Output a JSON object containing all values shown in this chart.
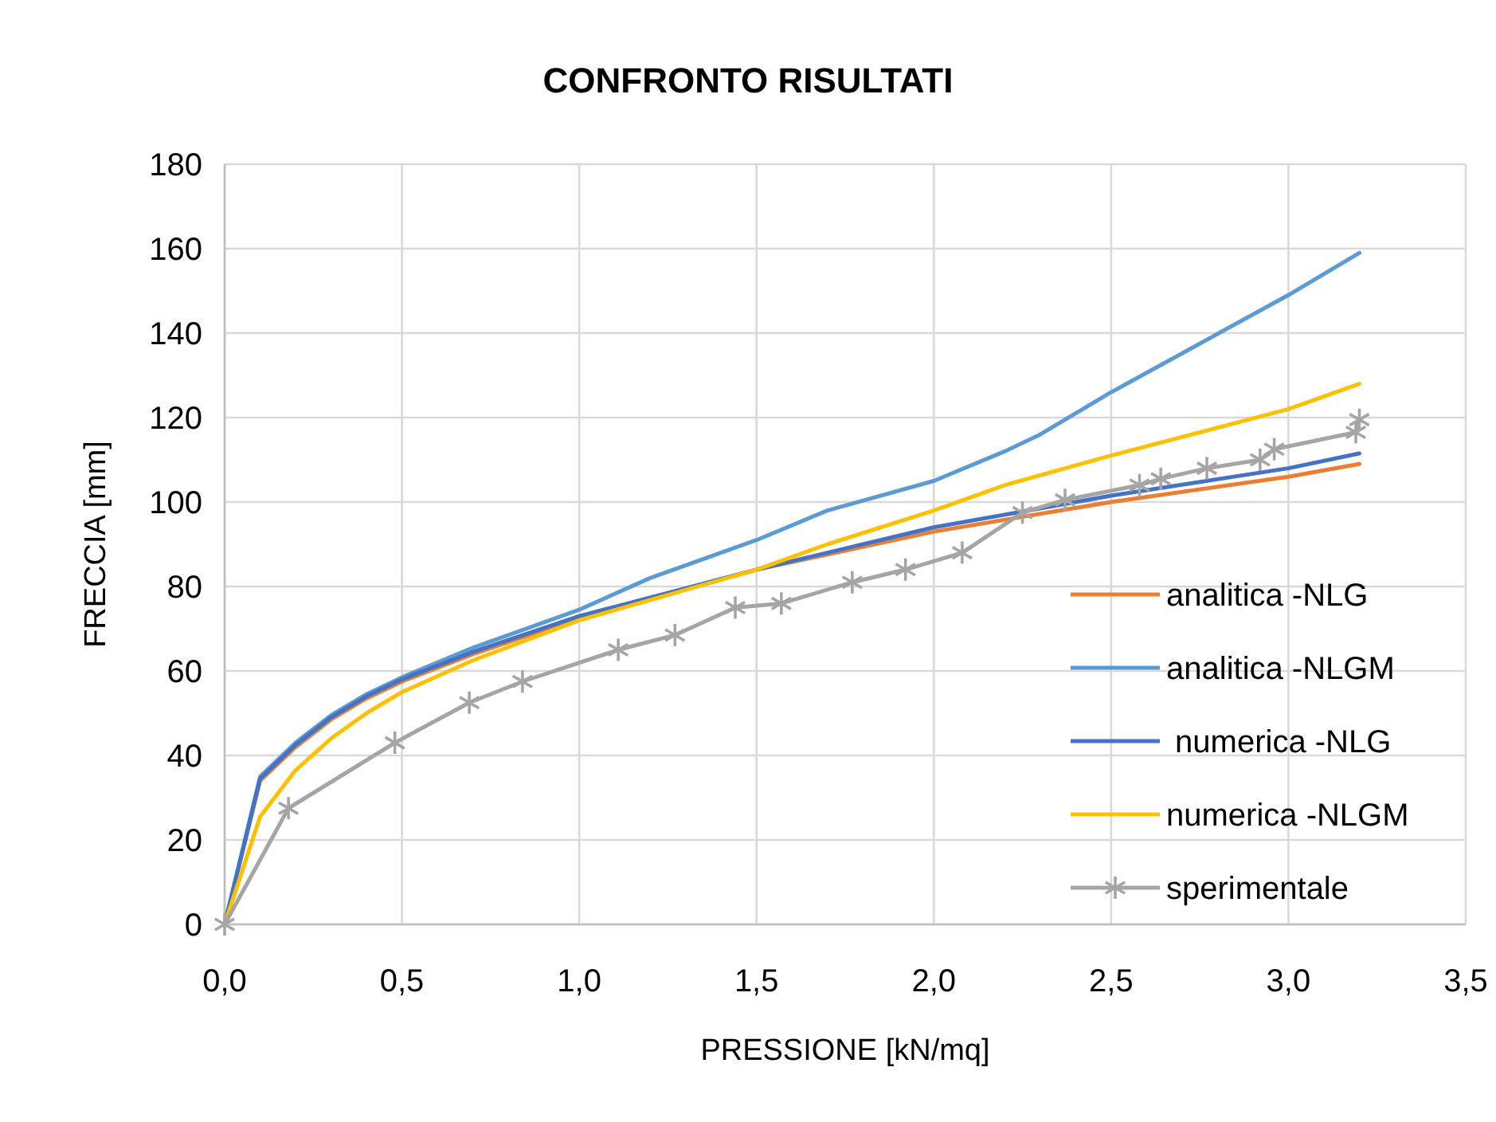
{
  "chart_data": {
    "type": "line",
    "title": "CONFRONTO RISULTATI",
    "xlabel": "PRESSIONE [kN/mq]",
    "ylabel": "FRECCIA [mm]",
    "xlim": [
      0,
      3.5
    ],
    "xticks": [
      {
        "value": 0,
        "label": "0,0"
      },
      {
        "value": 0.5,
        "label": "0,5"
      },
      {
        "value": 1,
        "label": "1,0"
      },
      {
        "value": 1.5,
        "label": "1,5"
      },
      {
        "value": 2,
        "label": "2,0"
      },
      {
        "value": 2.5,
        "label": "2,5"
      },
      {
        "value": 3,
        "label": "3,0"
      },
      {
        "value": 3.5,
        "label": "3,5"
      }
    ],
    "ylim": [
      0,
      180
    ],
    "yticks": [
      0,
      20,
      40,
      60,
      80,
      100,
      120,
      140,
      160,
      180
    ],
    "grid": true,
    "legend": "right",
    "line_style": "solid",
    "series": [
      {
        "name": "analitica -NLG",
        "color": "#ed7d31",
        "marker": "none",
        "x": [
          0,
          0.1,
          0.2,
          0.3,
          0.4,
          0.5,
          0.7,
          1.0,
          1.5,
          2.0,
          2.5,
          3.0,
          3.2
        ],
        "values": [
          0,
          34,
          42,
          48.5,
          53.5,
          57.5,
          64,
          72.5,
          84,
          93,
          100,
          106,
          109
        ]
      },
      {
        "name": "analitica -NLGM",
        "color": "#5b9bd5",
        "marker": "none",
        "x": [
          0,
          0.1,
          0.2,
          0.3,
          0.4,
          0.5,
          0.7,
          1.0,
          1.2,
          1.5,
          1.7,
          2.0,
          2.2,
          2.3,
          2.5,
          3.0,
          3.2
        ],
        "values": [
          0,
          35,
          43,
          49.5,
          54.5,
          58.5,
          65.5,
          74.5,
          82,
          91,
          98,
          105,
          112,
          116,
          126,
          149,
          159
        ]
      },
      {
        "name": " numerica -NLG",
        "color": "#4472c4",
        "marker": "none",
        "x": [
          0,
          0.1,
          0.2,
          0.3,
          0.4,
          0.5,
          0.7,
          1.0,
          1.5,
          2.0,
          2.5,
          3.0,
          3.2
        ],
        "values": [
          0,
          34.5,
          42.5,
          49,
          54,
          58,
          64.5,
          73,
          84,
          94,
          101.5,
          108,
          111.5
        ]
      },
      {
        "name": "numerica -NLGM",
        "color": "#ffc000",
        "marker": "none",
        "x": [
          0,
          0.1,
          0.2,
          0.3,
          0.4,
          0.5,
          0.7,
          1.0,
          1.5,
          1.7,
          2.0,
          2.2,
          2.5,
          3.0,
          3.2
        ],
        "values": [
          0,
          25.5,
          36.5,
          44,
          50,
          55,
          62.5,
          72,
          84,
          90,
          98,
          104,
          111,
          122,
          128
        ]
      },
      {
        "name": "sperimentale",
        "color": "#a5a5a5",
        "marker": "cross",
        "x": [
          0,
          0.18,
          0.48,
          0.69,
          0.84,
          1.11,
          1.27,
          1.44,
          1.57,
          1.77,
          1.92,
          2.08,
          2.25,
          2.37,
          2.58,
          2.64,
          2.77,
          2.92,
          2.96,
          3.19,
          3.2
        ],
        "values": [
          0,
          27.5,
          43,
          52.5,
          57.5,
          65,
          68.5,
          75,
          76,
          81,
          84,
          88,
          97.5,
          100.5,
          104,
          105.5,
          108,
          110,
          112.5,
          116.5,
          119.5
        ]
      }
    ]
  }
}
